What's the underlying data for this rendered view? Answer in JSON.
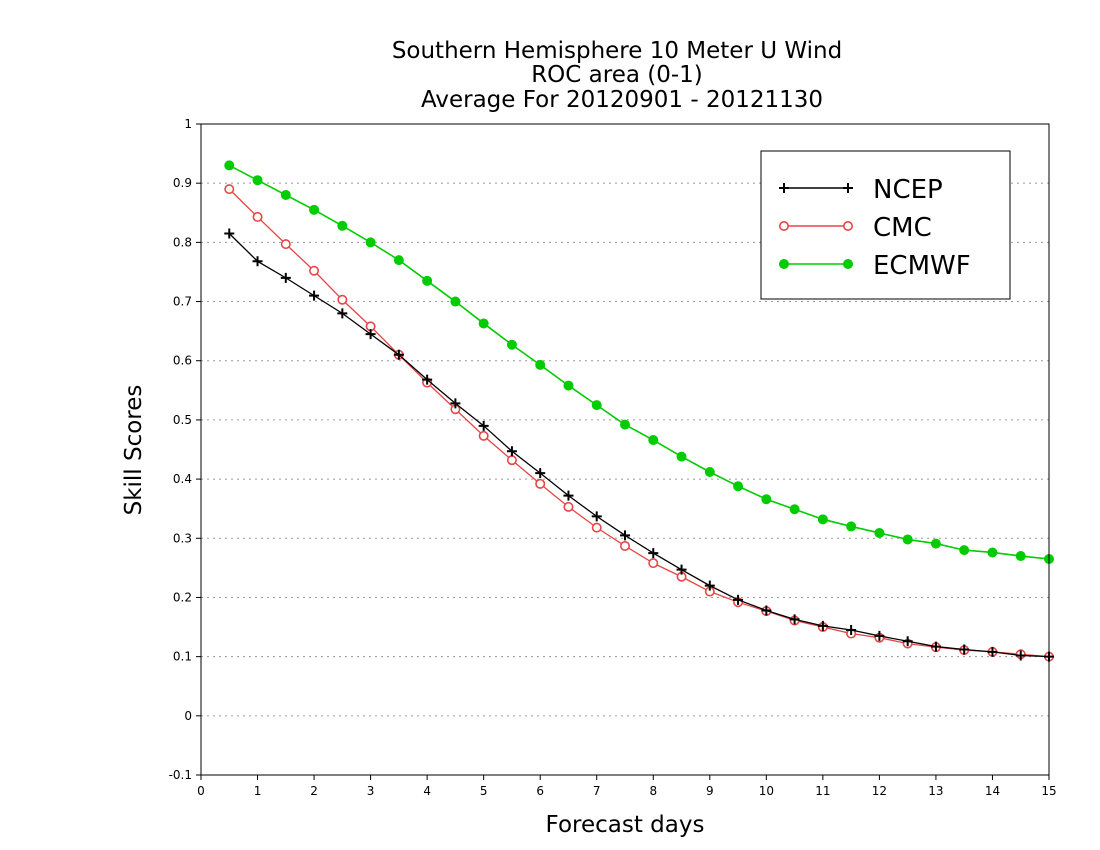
{
  "chart_data": {
    "type": "line",
    "title": [
      "Southern Hemisphere 10 Meter U Wind",
      "ROC area (0-1)",
      "Average For 20120901 - 20121130"
    ],
    "xlabel": "Forecast days",
    "ylabel": "Skill Scores",
    "xlim": [
      0,
      15
    ],
    "ylim": [
      -0.1,
      1
    ],
    "xticks": [
      "0",
      "1",
      "2",
      "3",
      "4",
      "5",
      "6",
      "7",
      "8",
      "9",
      "10",
      "11",
      "12",
      "13",
      "14",
      "15"
    ],
    "yticks": [
      "-0.1",
      "0",
      "0.1",
      "0.2",
      "0.3",
      "0.4",
      "0.5",
      "0.6",
      "0.7",
      "0.8",
      "0.9",
      "1"
    ],
    "grid": true,
    "legend_position": "top-right",
    "x": [
      0.5,
      1,
      1.5,
      2,
      2.5,
      3,
      3.5,
      4,
      4.5,
      5,
      5.5,
      6,
      6.5,
      7,
      7.5,
      8,
      8.5,
      9,
      9.5,
      10,
      10.5,
      11,
      11.5,
      12,
      12.5,
      13,
      13.5,
      14,
      14.5,
      15
    ],
    "series": [
      {
        "name": "NCEP",
        "color": "#000000",
        "marker": "plus",
        "values": [
          0.815,
          0.768,
          0.74,
          0.71,
          0.68,
          0.645,
          0.61,
          0.568,
          0.528,
          0.49,
          0.447,
          0.41,
          0.372,
          0.337,
          0.305,
          0.275,
          0.247,
          0.22,
          0.196,
          0.178,
          0.163,
          0.152,
          0.145,
          0.135,
          0.126,
          0.117,
          0.112,
          0.108,
          0.102,
          0.1
        ]
      },
      {
        "name": "CMC",
        "color": "#e64646",
        "marker": "open-circle",
        "values": [
          0.89,
          0.843,
          0.797,
          0.752,
          0.703,
          0.658,
          0.61,
          0.563,
          0.518,
          0.473,
          0.432,
          0.392,
          0.353,
          0.318,
          0.287,
          0.258,
          0.235,
          0.21,
          0.192,
          0.177,
          0.161,
          0.15,
          0.139,
          0.132,
          0.122,
          0.116,
          0.111,
          0.108,
          0.104,
          0.1
        ]
      },
      {
        "name": "ECMWF",
        "color": "#00cc00",
        "marker": "filled-circle",
        "values": [
          0.93,
          0.905,
          0.88,
          0.855,
          0.828,
          0.8,
          0.77,
          0.735,
          0.7,
          0.663,
          0.627,
          0.593,
          0.558,
          0.525,
          0.492,
          0.466,
          0.438,
          0.412,
          0.388,
          0.366,
          0.349,
          0.332,
          0.32,
          0.309,
          0.298,
          0.291,
          0.28,
          0.276,
          0.27,
          0.265
        ]
      }
    ]
  }
}
